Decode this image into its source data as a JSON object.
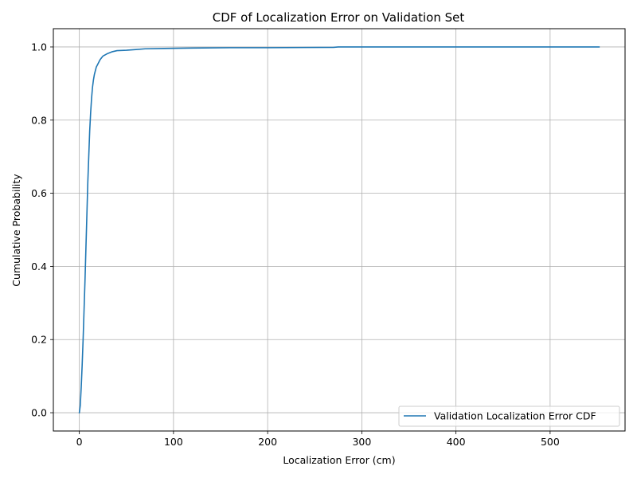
{
  "chart_data": {
    "type": "line",
    "title": "CDF of Localization Error on Validation Set",
    "xlabel": "Localization Error (cm)",
    "ylabel": "Cumulative Probability",
    "xlim": [
      -27.6,
      579.6
    ],
    "ylim": [
      -0.05,
      1.05
    ],
    "xticks": [
      0,
      100,
      200,
      300,
      400,
      500
    ],
    "yticks": [
      0.0,
      0.2,
      0.4,
      0.6,
      0.8,
      1.0
    ],
    "xtick_labels": [
      "0",
      "100",
      "200",
      "300",
      "400",
      "500"
    ],
    "ytick_labels": [
      "0.0",
      "0.2",
      "0.4",
      "0.6",
      "0.8",
      "1.0"
    ],
    "grid": true,
    "legend_position": "lower-right",
    "colors": {
      "series": "#1f77b4",
      "grid": "#b0b0b0"
    },
    "series": [
      {
        "name": "Validation Localization Error CDF",
        "x": [
          0,
          1,
          2,
          3,
          4,
          5,
          6,
          7,
          8,
          9,
          10,
          11,
          12,
          13,
          14,
          15,
          16,
          18,
          20,
          22,
          25,
          30,
          35,
          40,
          50,
          60,
          70,
          90,
          120,
          160,
          200,
          270,
          275,
          400,
          552
        ],
        "y": [
          0.0,
          0.02,
          0.07,
          0.13,
          0.2,
          0.28,
          0.36,
          0.45,
          0.54,
          0.63,
          0.7,
          0.77,
          0.82,
          0.86,
          0.89,
          0.91,
          0.925,
          0.945,
          0.955,
          0.965,
          0.975,
          0.982,
          0.987,
          0.99,
          0.991,
          0.993,
          0.995,
          0.996,
          0.997,
          0.998,
          0.998,
          0.999,
          1.0,
          1.0,
          1.0
        ]
      }
    ]
  }
}
